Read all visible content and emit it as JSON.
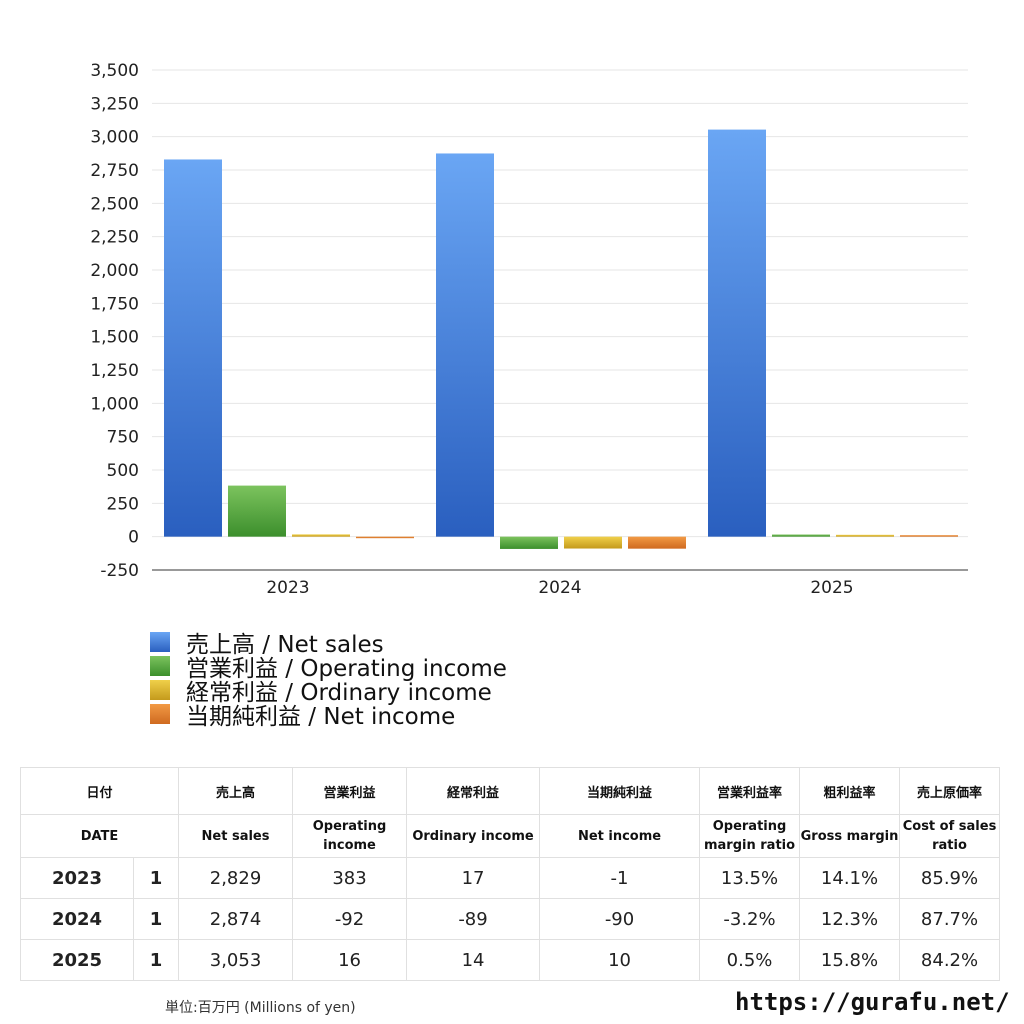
{
  "chart_data": {
    "type": "bar",
    "categories": [
      "2023",
      "2024",
      "2025"
    ],
    "series": [
      {
        "name": "売上高 / Net sales",
        "values": [
          2829,
          2874,
          3053
        ],
        "color": "#3f7ed8"
      },
      {
        "name": "営業利益 / Operating income",
        "values": [
          383,
          -92,
          16
        ],
        "color": "#5aa845"
      },
      {
        "name": "経常利益 / Ordinary income",
        "values": [
          17,
          -89,
          14
        ],
        "color": "#d9b52e"
      },
      {
        "name": "当期純利益 / Net income",
        "values": [
          -1,
          -90,
          10
        ],
        "color": "#de7a2c"
      }
    ],
    "ylim": [
      -250,
      3500
    ],
    "yticks": [
      "3,500",
      "3,250",
      "3,000",
      "2,750",
      "2,500",
      "2,250",
      "2,000",
      "1,750",
      "1,500",
      "1,250",
      "1,000",
      "750",
      "500",
      "250",
      "0",
      "-250"
    ],
    "grid": true,
    "legend_position": "bottom-left"
  },
  "table": {
    "headers_jp": [
      "日付",
      "売上高",
      "営業利益",
      "経常利益",
      "当期純利益",
      "営業利益率",
      "粗利益率",
      "売上原価率"
    ],
    "headers_en": [
      "DATE",
      "Net sales",
      "Operating income",
      "Ordinary income",
      "Net income",
      "Operating margin ratio",
      "Gross margin",
      "Cost of sales ratio"
    ],
    "rows": [
      {
        "year": "2023",
        "q": "1",
        "net_sales": "2,829",
        "op": "383",
        "ord": "17",
        "net": "-1",
        "op_margin": "13.5%",
        "gross": "14.1%",
        "cost": "85.9%"
      },
      {
        "year": "2024",
        "q": "1",
        "net_sales": "2,874",
        "op": "-92",
        "ord": "-89",
        "net": "-90",
        "op_margin": "-3.2%",
        "gross": "12.3%",
        "cost": "87.7%"
      },
      {
        "year": "2025",
        "q": "1",
        "net_sales": "3,053",
        "op": "16",
        "ord": "14",
        "net": "10",
        "op_margin": "0.5%",
        "gross": "15.8%",
        "cost": "84.2%"
      }
    ]
  },
  "footer": {
    "unit": "単位:百万円 (Millions of yen)",
    "url": "https://gurafu.net/"
  }
}
